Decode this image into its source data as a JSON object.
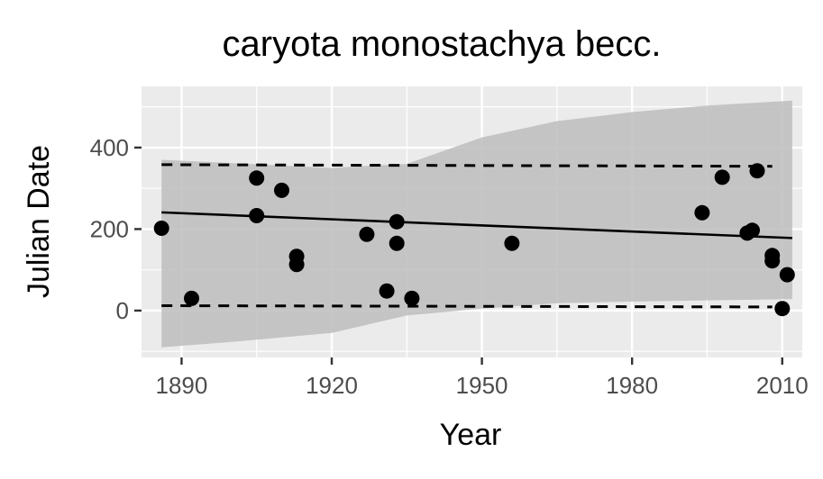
{
  "chart_data": {
    "type": "scatter",
    "title": "caryota monostachya becc.",
    "xlabel": "Year",
    "ylabel": "Julian Date",
    "xlim": [
      1882,
      2014
    ],
    "ylim": [
      -115,
      550
    ],
    "x_ticks": [
      1890,
      1920,
      1950,
      1980,
      2010
    ],
    "x_tick_labels": [
      "1890",
      "1920",
      "1950",
      "1980",
      "2010"
    ],
    "y_ticks": [
      0,
      200,
      400
    ],
    "y_tick_labels": [
      "0",
      "200",
      "400"
    ],
    "grid": true,
    "points": [
      {
        "x": 1886,
        "y": 202
      },
      {
        "x": 1892,
        "y": 30
      },
      {
        "x": 1905,
        "y": 325
      },
      {
        "x": 1905,
        "y": 233
      },
      {
        "x": 1910,
        "y": 295
      },
      {
        "x": 1913,
        "y": 133
      },
      {
        "x": 1913,
        "y": 113
      },
      {
        "x": 1927,
        "y": 187
      },
      {
        "x": 1931,
        "y": 48
      },
      {
        "x": 1933,
        "y": 218
      },
      {
        "x": 1933,
        "y": 165
      },
      {
        "x": 1936,
        "y": 30
      },
      {
        "x": 1956,
        "y": 165
      },
      {
        "x": 1994,
        "y": 240
      },
      {
        "x": 1998,
        "y": 327
      },
      {
        "x": 2003,
        "y": 190
      },
      {
        "x": 2004,
        "y": 197
      },
      {
        "x": 2005,
        "y": 343
      },
      {
        "x": 2008,
        "y": 135
      },
      {
        "x": 2008,
        "y": 122
      },
      {
        "x": 2010,
        "y": 5
      },
      {
        "x": 2011,
        "y": 88
      }
    ],
    "trend_line": [
      {
        "x": 1886,
        "y": 241
      },
      {
        "x": 2012,
        "y": 178
      }
    ],
    "confidence_band": {
      "x": [
        1886,
        1900,
        1920,
        1935,
        1950,
        1965,
        1980,
        1995,
        2012
      ],
      "upper": [
        370,
        362,
        350,
        360,
        425,
        465,
        487,
        503,
        515
      ],
      "lower": [
        -90,
        -77,
        -55,
        -12,
        5,
        18,
        22,
        25,
        28
      ]
    },
    "upper_bound_dashed": [
      {
        "x": 1886,
        "y": 358
      },
      {
        "x": 2008,
        "y": 354
      }
    ],
    "lower_bound_dashed": [
      {
        "x": 1886,
        "y": 12
      },
      {
        "x": 2008,
        "y": 9
      }
    ],
    "colors": {
      "panel_background": "#ebebeb",
      "grid_major": "#ffffff",
      "band_fill": "#bdbdbd",
      "points": "#000000",
      "line": "#000000",
      "tick_text": "#4d4d4d"
    }
  }
}
